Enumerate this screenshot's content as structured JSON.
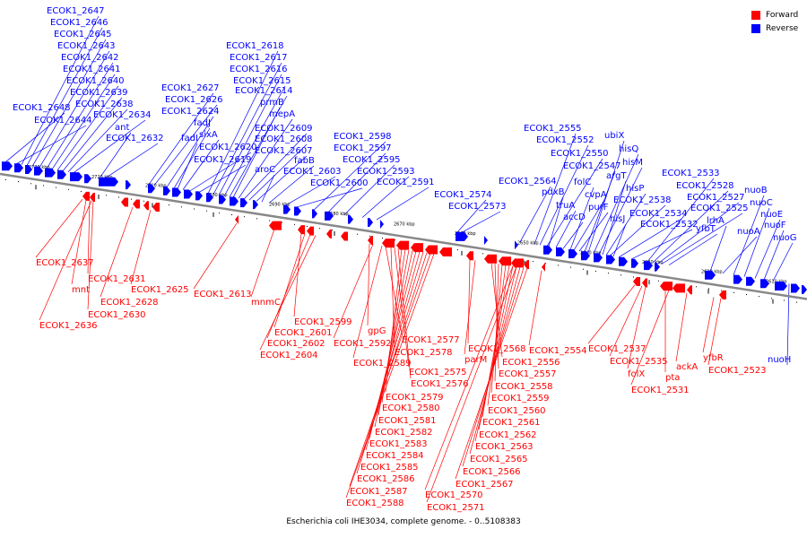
{
  "legend": {
    "forward": {
      "label": "Forward",
      "color": "#ff0000"
    },
    "reverse": {
      "label": "Reverse",
      "color": "#0000ff"
    }
  },
  "caption": "Escherichia coli IHE3034, complete genome. - 0..5108383",
  "colors": {
    "forward": "#ff0000",
    "reverse": "#0000ff",
    "backbone": "#888888"
  },
  "ticks": [
    "2730 kbp",
    "2720 kbp",
    "2710 kbp",
    "2700 kbp",
    "2690 kbp",
    "2680 kbp",
    "2670 kbp",
    "2660 kbp",
    "2650 kbp",
    "2640 kbp",
    "2630 kbp",
    "2620 kbp",
    "2610 kbp"
  ],
  "reverse_labels": [
    "ECOK1_2647",
    "ECOK1_2646",
    "ECOK1_2645",
    "ECOK1_2643",
    "ECOK1_2642",
    "ECOK1_2641",
    "ECOK1_2640",
    "ECOK1_2639",
    "ECOK1_2638",
    "ECOK1_2648",
    "ECOK1_2634",
    "ECOK1_2644",
    "ant",
    "ECOK1_2632",
    "ECOK1_2627",
    "ECOK1_2626",
    "ECOK1_2624",
    "fadJ",
    "fadI",
    "sixA",
    "ECOK1_2620",
    "ECOK1_2619",
    "ECOK1_2618",
    "ECOK1_2617",
    "ECOK1_2616",
    "ECOK1_2615",
    "ECOK1_2614",
    "prmB",
    "mepA",
    "ECOK1_2609",
    "ECOK1_2608",
    "ECOK1_2607",
    "aroC",
    "fabB",
    "ECOK1_2603",
    "ECOK1_2600",
    "ECOK1_2598",
    "ECOK1_2597",
    "ECOK1_2595",
    "ECOK1_2593",
    "ECOK1_2591",
    "ECOK1_2574",
    "ECOK1_2573",
    "ECOK1_2555",
    "ECOK1_2552",
    "ECOK1_2550",
    "ECOK1_2564",
    "pdxB",
    "truA",
    "accD",
    "folC",
    "cvpA",
    "purF",
    "ECOK1_2547",
    "ubiX",
    "hisQ",
    "hisM",
    "argT",
    "hisP",
    "ECOK1_2538",
    "hisJ",
    "ECOK1_2534",
    "ECOK1_2532",
    "ECOK1_2533",
    "ECOK1_2528",
    "ECOK1_2527",
    "ECOK1_2525",
    "yfbT",
    "lrhA",
    "nuoA",
    "nuoB",
    "nuoC",
    "nuoE",
    "nuoF",
    "nuoG",
    "nuoH"
  ],
  "forward_labels": [
    "ECOK1_2637",
    "mnt",
    "ECOK1_2631",
    "ECOK1_2628",
    "ECOK1_2625",
    "ECOK1_2630",
    "ECOK1_2636",
    "ECOK1_2613",
    "mnmC",
    "ECOK1_2599",
    "ECOK1_2601",
    "ECOK1_2602",
    "ECOK1_2604",
    "gpG",
    "ECOK1_2592",
    "ECOK1_2577",
    "ECOK1_2578",
    "ECOK1_2589",
    "ECOK1_2575",
    "ECOK1_2576",
    "ECOK1_2579",
    "ECOK1_2580",
    "ECOK1_2581",
    "ECOK1_2582",
    "ECOK1_2583",
    "ECOK1_2584",
    "ECOK1_2585",
    "ECOK1_2586",
    "ECOK1_2587",
    "ECOK1_2588",
    "ECOK1_2568",
    "parM",
    "ECOK1_2556",
    "ECOK1_2557",
    "ECOK1_2558",
    "ECOK1_2559",
    "ECOK1_2560",
    "ECOK1_2561",
    "ECOK1_2562",
    "ECOK1_2563",
    "ECOK1_2565",
    "ECOK1_2566",
    "ECOK1_2567",
    "ECOK1_2570",
    "ECOK1_2571",
    "ECOK1_2554",
    "ECOK1_2537",
    "ECOK1_2535",
    "folX",
    "pta",
    "ackA",
    "ECOK1_2531",
    "yfbR",
    "ECOK1_2523"
  ]
}
